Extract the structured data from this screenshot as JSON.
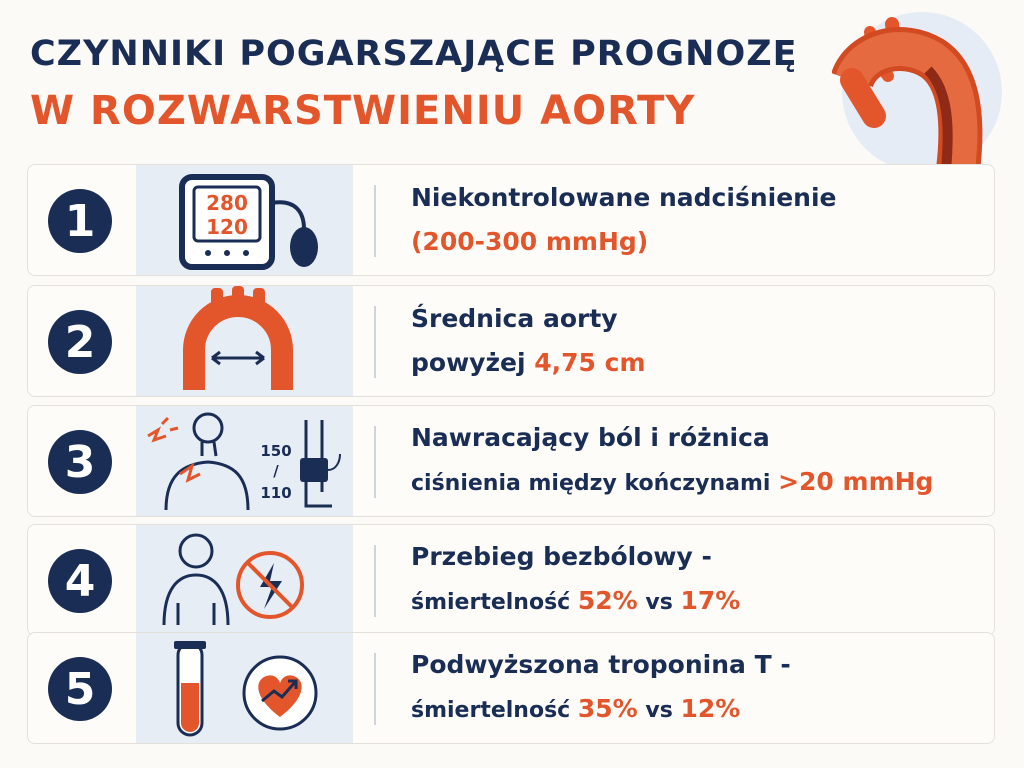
{
  "title": {
    "line1": "CZYNNIKI POGARSZAJĄCE PROGNOZĘ",
    "line2": "W ROZWARSTWIENIU AORTY"
  },
  "colors": {
    "navy": "#1a2d55",
    "accent": "#e3562c",
    "panel": "#e7edf5"
  },
  "items": [
    {
      "number": "1",
      "icon": "blood-pressure-monitor-icon",
      "monitor_top": "280",
      "monitor_bottom": "120",
      "line1": "Niekontrolowane nadciśnienie",
      "line2_highlight": "(200-300 mmHg)"
    },
    {
      "number": "2",
      "icon": "aortic-arch-diameter-icon",
      "line1": "Średnica aorty",
      "line2_prefix": "powyżej ",
      "line2_highlight": "4,75 cm"
    },
    {
      "number": "3",
      "icon": "chest-pain-and-limb-cuff-icon",
      "bp_top": "150",
      "bp_sep": "/",
      "bp_bottom": "110",
      "line1": "Nawracający ból i różnica",
      "line2_prefix": "ciśnienia między kończynami ",
      "line2_highlight": ">20 mmHg"
    },
    {
      "number": "4",
      "icon": "painless-no-pain-icon",
      "line1": "Przebieg bezbólowy -",
      "line2_prefix": "śmiertelność ",
      "line2_highlight": "52%",
      "line2_mid": " vs ",
      "line2_highlight2": "17%"
    },
    {
      "number": "5",
      "icon": "troponin-test-tube-heart-icon",
      "line1": "Podwyższona troponina T -",
      "line2_prefix": "śmiertelność ",
      "line2_highlight": "35%",
      "line2_mid": " vs ",
      "line2_highlight2": "12%"
    }
  ]
}
